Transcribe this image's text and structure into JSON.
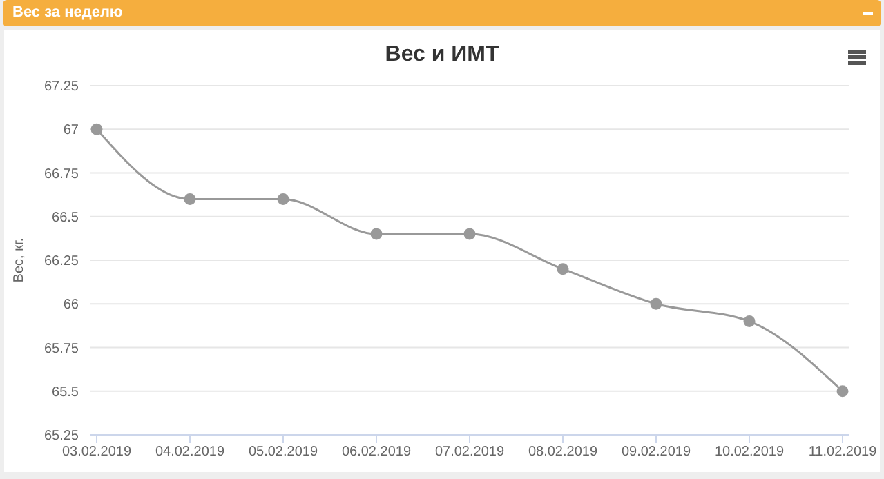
{
  "chart_data": {
    "type": "line",
    "title": "Вес и ИМТ",
    "subtitle": "Вес за неделю",
    "ylabel": "Вес, кг.",
    "categories": [
      "03.02.2019",
      "04.02.2019",
      "05.02.2019",
      "06.02.2019",
      "07.02.2019",
      "08.02.2019",
      "09.02.2019",
      "10.02.2019",
      "11.02.2019"
    ],
    "series": [
      {
        "color": "#999999",
        "values": [
          67,
          66.6,
          66.6,
          66.4,
          66.4,
          66.2,
          66.0,
          65.9,
          65.5
        ]
      }
    ],
    "ylim": [
      65.25,
      67.25
    ],
    "yticks": [
      65.25,
      65.5,
      65.75,
      66,
      66.25,
      66.5,
      66.75,
      67,
      67.25
    ],
    "grid": "y",
    "legend": false,
    "marker": "circle",
    "line_style": "solid"
  }
}
